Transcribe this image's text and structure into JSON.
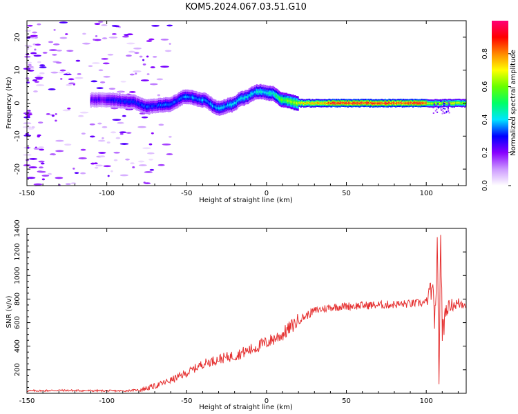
{
  "title": "KOM5.2024.067.03.51.G10",
  "chart_data": [
    {
      "type": "heatmap",
      "xlabel": "Height of straight line (km)",
      "ylabel": "Frequency (Hz)",
      "xlim": [
        -150,
        125
      ],
      "ylim": [
        -25,
        25
      ],
      "xticks": [
        -150,
        -100,
        -50,
        0,
        50,
        100
      ],
      "yticks": [
        -20,
        -10,
        0,
        10,
        20
      ],
      "colorbar": {
        "label": "Normalized spectral amplitude",
        "range": [
          0,
          1
        ],
        "ticks": [
          "0.0",
          "0.2",
          "0.4",
          "0.6",
          "0.8"
        ],
        "colors": [
          "#ffffff",
          "#cc99ff",
          "#8800ff",
          "#0000ff",
          "#00e5ff",
          "#00ff66",
          "#66ff00",
          "#ffff00",
          "#ff8800",
          "#ff0000",
          "#ff0077"
        ]
      },
      "ridge": [
        {
          "x": -100,
          "y": 1.0
        },
        {
          "x": -85,
          "y": 0.5
        },
        {
          "x": -75,
          "y": -1.0
        },
        {
          "x": -62,
          "y": -0.5
        },
        {
          "x": -50,
          "y": 2.0
        },
        {
          "x": -40,
          "y": 1.0
        },
        {
          "x": -30,
          "y": -1.5
        },
        {
          "x": -22,
          "y": -0.5
        },
        {
          "x": -15,
          "y": 1.5
        },
        {
          "x": -5,
          "y": 3.5
        },
        {
          "x": 3,
          "y": 3.0
        },
        {
          "x": 10,
          "y": 1.0
        },
        {
          "x": 20,
          "y": 0.0
        },
        {
          "x": 50,
          "y": 0.0
        },
        {
          "x": 100,
          "y": 0.0
        },
        {
          "x": 125,
          "y": 0.0
        }
      ]
    },
    {
      "type": "line",
      "xlabel": "Height of straight line (km)",
      "ylabel": "SNR (v/v)",
      "xlim": [
        -150,
        125
      ],
      "ylim": [
        0,
        1400
      ],
      "xticks": [
        -150,
        -100,
        -50,
        0,
        50,
        100
      ],
      "yticks": [
        200,
        400,
        600,
        800,
        1000,
        1200,
        1400
      ],
      "color": "#e53030",
      "series": [
        {
          "x": [
            -150,
            -130,
            -110,
            -90,
            -80,
            -70,
            -60,
            -50,
            -40,
            -30,
            -20,
            -10,
            0,
            10,
            20,
            30,
            40,
            50,
            60,
            70,
            80,
            90,
            100,
            103,
            106,
            107,
            108,
            109,
            110,
            112,
            115,
            120,
            125
          ],
          "y": [
            20,
            25,
            22,
            20,
            28,
            60,
            110,
            170,
            250,
            290,
            320,
            370,
            430,
            500,
            620,
            700,
            730,
            740,
            745,
            750,
            755,
            760,
            770,
            900,
            600,
            1300,
            100,
            1400,
            500,
            700,
            750,
            760,
            770
          ]
        }
      ]
    }
  ]
}
